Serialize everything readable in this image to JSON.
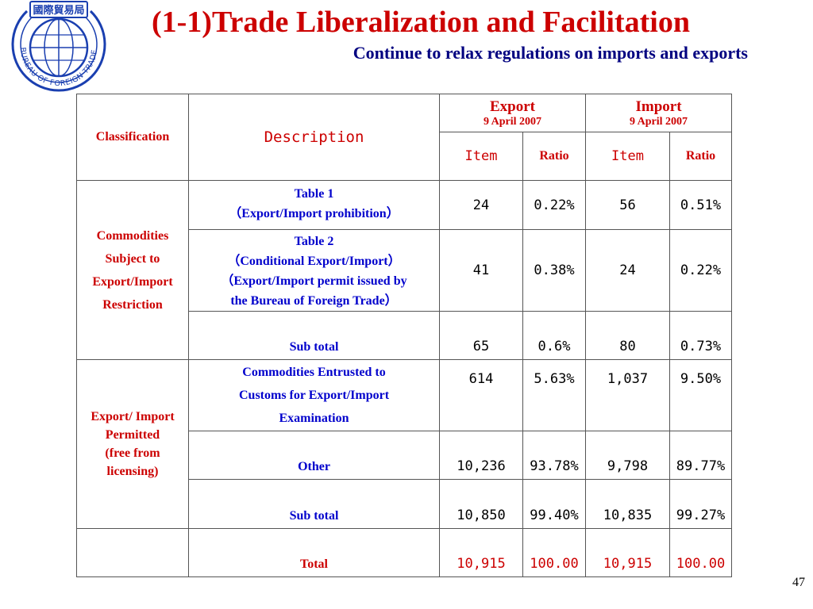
{
  "logo": {
    "top_text": "國際貿易局",
    "ring_text": "BUREAU OF FOREIGN TRADE"
  },
  "header": {
    "title": "(1-1)Trade Liberalization and Facilitation",
    "subtitle": "Continue to relax regulations on imports and exports"
  },
  "table": {
    "headers": {
      "classification": "Classification",
      "description": "Description",
      "export": "Export",
      "export_date": "9 April 2007",
      "import": "Import",
      "import_date": "9 April 2007",
      "item": "Item",
      "ratio": "Ratio"
    },
    "group1": {
      "label_lines": [
        "Commodities",
        "Subject to",
        "Export/Import",
        "Restriction"
      ],
      "rows": [
        {
          "desc_lines": [
            "Table 1",
            "（Export/Import prohibition）"
          ],
          "export_item": "24",
          "export_ratio": "0.22%",
          "import_item": "56",
          "import_ratio": "0.51%"
        },
        {
          "desc_lines": [
            "Table 2",
            "（Conditional Export/Import）",
            "（Export/Import permit issued by",
            "the Bureau of Foreign Trade）"
          ],
          "export_item": "41",
          "export_ratio": "0.38%",
          "import_item": "24",
          "import_ratio": "0.22%"
        },
        {
          "desc_lines": [
            "Sub total"
          ],
          "export_item": "65",
          "export_ratio": "0.6%",
          "import_item": "80",
          "import_ratio": "0.73%"
        }
      ]
    },
    "group2": {
      "label_lines": [
        "Export/ Import",
        "Permitted",
        "(free from",
        "licensing)"
      ],
      "rows": [
        {
          "desc_lines": [
            "Commodities Entrusted to",
            "Customs for Export/Import",
            "Examination"
          ],
          "export_item": "614",
          "export_ratio": "5.63%",
          "import_item": "1,037",
          "import_ratio": "9.50%"
        },
        {
          "desc_lines": [
            "Other"
          ],
          "export_item": "10,236",
          "export_ratio": "93.78%",
          "import_item": "9,798",
          "import_ratio": "89.77%"
        },
        {
          "desc_lines": [
            "Sub total"
          ],
          "export_item": "10,850",
          "export_ratio": "99.40%",
          "import_item": "10,835",
          "import_ratio": "99.27%"
        }
      ]
    },
    "total": {
      "label": "Total",
      "export_item": "10,915",
      "export_ratio": "100.00",
      "import_item": "10,915",
      "import_ratio": "100.00"
    }
  },
  "page_number": "47",
  "colors": {
    "title_red": "#cc0000",
    "subtitle_blue": "#000080",
    "desc_blue": "#0000cc",
    "logo_blue": "#1a3fb0"
  }
}
